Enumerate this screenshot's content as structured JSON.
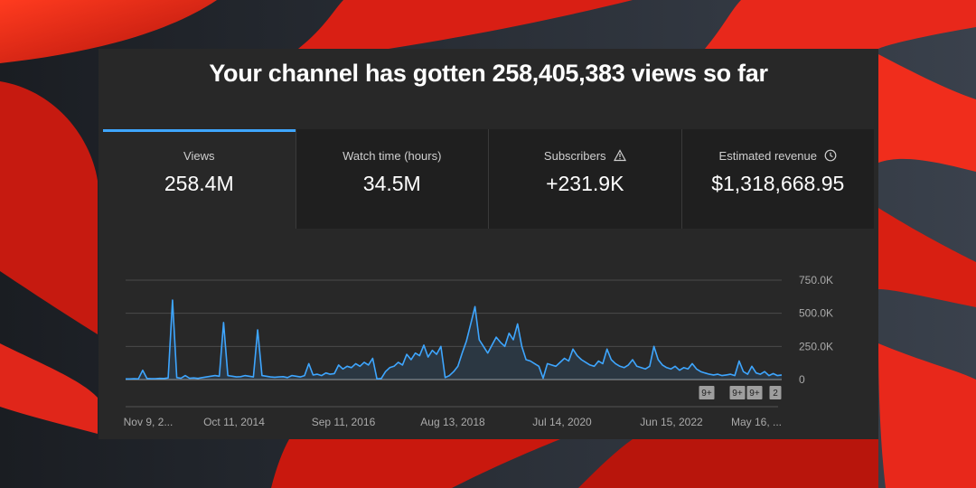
{
  "headline": "Your channel has gotten 258,405,383 views so far",
  "metrics": [
    {
      "label": "Views",
      "value": "258.4M",
      "active": true
    },
    {
      "label": "Watch time (hours)",
      "value": "34.5M",
      "active": false
    },
    {
      "label": "Subscribers",
      "value": "+231.9K",
      "icon": "warning-icon",
      "active": false
    },
    {
      "label": "Estimated revenue",
      "value": "$1,318,668.95",
      "icon": "clock-icon",
      "active": false
    }
  ],
  "badges": [
    "9+",
    "9+",
    "9+",
    "2"
  ],
  "colors": {
    "line": "#3ea6ff",
    "accent": "#3ea6ff",
    "panel": "#282828",
    "tab_bg": "#1f1f1f"
  },
  "chart_data": {
    "type": "line",
    "title": "",
    "xlabel": "",
    "ylabel": "",
    "x_tick_labels": [
      "Nov 9, 2...",
      "Oct 11, 2014",
      "Sep 11, 2016",
      "Aug 13, 2018",
      "Jul 14, 2020",
      "Jun 15, 2022",
      "May 16, ..."
    ],
    "y_tick_labels": [
      "750.0K",
      "500.0K",
      "250.0K",
      "0"
    ],
    "ylim": [
      0,
      750000
    ],
    "grid": true,
    "series": [
      {
        "values": [
          5000,
          5000,
          6000,
          5000,
          70000,
          8000,
          6000,
          7000,
          9000,
          8000,
          12000,
          600000,
          15000,
          10000,
          30000,
          10000,
          12000,
          9000,
          15000,
          20000,
          25000,
          30000,
          25000,
          430000,
          30000,
          25000,
          20000,
          22000,
          30000,
          25000,
          20000,
          375000,
          30000,
          25000,
          20000,
          18000,
          20000,
          22000,
          15000,
          30000,
          25000,
          20000,
          30000,
          120000,
          35000,
          40000,
          30000,
          50000,
          40000,
          45000,
          110000,
          80000,
          100000,
          90000,
          120000,
          100000,
          130000,
          110000,
          160000,
          5000,
          8000,
          60000,
          90000,
          100000,
          130000,
          110000,
          190000,
          150000,
          200000,
          180000,
          260000,
          170000,
          220000,
          190000,
          250000,
          15000,
          30000,
          60000,
          100000,
          200000,
          290000,
          420000,
          550000,
          300000,
          250000,
          200000,
          260000,
          320000,
          280000,
          250000,
          350000,
          300000,
          420000,
          250000,
          150000,
          140000,
          120000,
          100000,
          10000,
          120000,
          110000,
          100000,
          130000,
          160000,
          140000,
          230000,
          180000,
          150000,
          130000,
          110000,
          100000,
          140000,
          120000,
          230000,
          150000,
          120000,
          100000,
          90000,
          110000,
          150000,
          100000,
          90000,
          80000,
          100000,
          250000,
          150000,
          110000,
          90000,
          80000,
          100000,
          70000,
          90000,
          80000,
          120000,
          80000,
          60000,
          50000,
          40000,
          35000,
          40000,
          30000,
          35000,
          40000,
          30000,
          140000,
          60000,
          40000,
          100000,
          50000,
          40000,
          60000,
          30000,
          45000,
          30000,
          35000
        ]
      }
    ]
  }
}
